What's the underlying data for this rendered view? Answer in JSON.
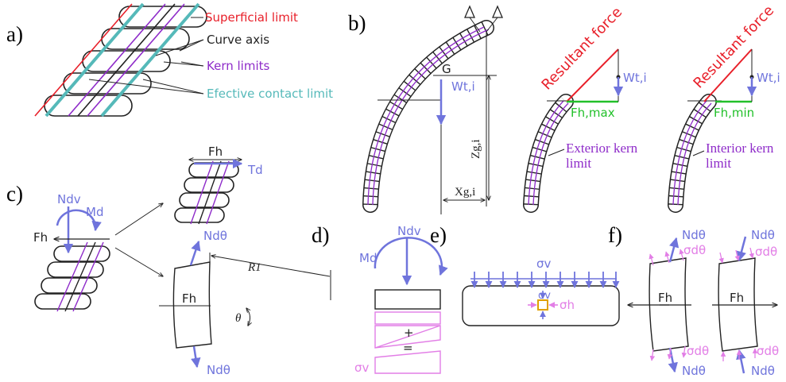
{
  "colors": {
    "red": "#e8202a",
    "dark": "#222222",
    "purple": "#8e2bc9",
    "teal": "#55b9b9",
    "blue": "#6f74dc",
    "green": "#22c02a",
    "pink": "#e27ee6"
  },
  "panels": {
    "a": "a)",
    "b": "b)",
    "c": "c)",
    "d": "d)",
    "e": "e)",
    "f": "f)"
  },
  "panel_a": {
    "superficial_limit": "Superficial limit",
    "curve_axis": "Curve axis",
    "kern_limits": "Kern limits",
    "contact_limit": "Efective contact limit"
  },
  "panel_b": {
    "g": "G",
    "wt1": "Wt,i",
    "zg": "Zg,i",
    "xg": "Xg,i",
    "resultant_1": "Resultant force",
    "wt2": "Wt,i",
    "fhmax": "Fh,max",
    "exterior_1": "Exterior kern",
    "exterior_2": "limit",
    "resultant_2": "Resultant force",
    "wt3": "Wt,i",
    "fhmin": "Fh,min",
    "interior_1": "Interior kern",
    "interior_2": "limit"
  },
  "panel_c": {
    "ndv": "Ndv",
    "md": "Md",
    "fh_left": "Fh",
    "fh_top": "Fh",
    "td": "Td",
    "ndtheta_top": "Ndθ",
    "fh_voussoir": "Fh",
    "r1": "R1",
    "theta": "θ",
    "ndtheta_bottom": "Ndθ"
  },
  "panel_d": {
    "ndv": "Ndv",
    "md": "Md",
    "plus": "+",
    "equals": "=",
    "sigma_v": "σv"
  },
  "panel_e": {
    "sigma_v_top": "σv",
    "sigma_v_small": "σv",
    "sigma_h": "σh"
  },
  "panel_f": {
    "nd_tl": "Ndθ",
    "sd_tl": "σdθ",
    "fh_l": "Fh",
    "sd_bl": "σdθ",
    "nd_bl": "Ndθ",
    "nd_tr": "Ndθ",
    "sd_tr": "σdθ",
    "fh_r": "Fh",
    "sd_br": "σdθ",
    "nd_br": "Ndθ"
  }
}
